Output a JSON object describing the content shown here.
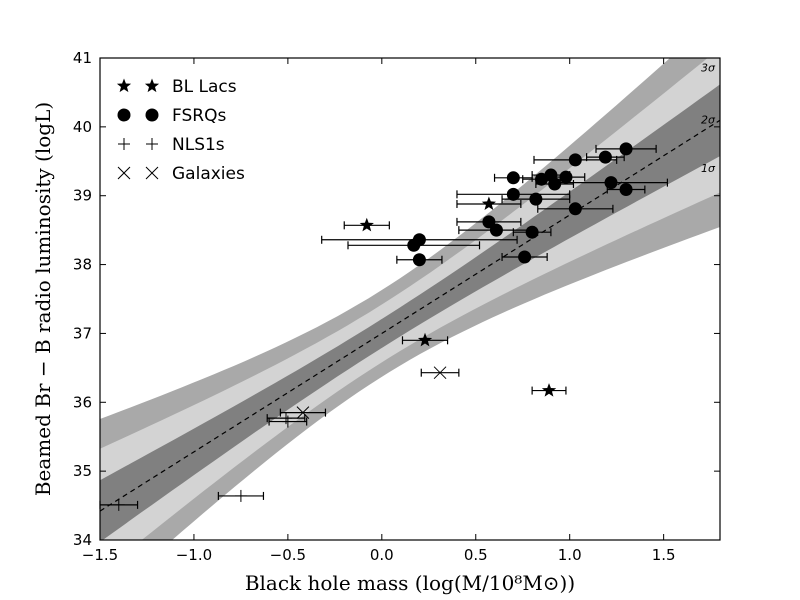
{
  "chart_data": {
    "type": "scatter",
    "xlabel": "Black hole mass (log(M/10⁸M⊙))",
    "ylabel": "Beamed Br − B radio luminosity (logL)",
    "xlim": [
      -1.5,
      1.8
    ],
    "ylim": [
      34,
      41
    ],
    "x_ticks": [
      -1.5,
      -1.0,
      -0.5,
      0.0,
      0.5,
      1.0,
      1.5
    ],
    "x_tick_labels": [
      "−1.5",
      "−1.0",
      "−0.5",
      "0.0",
      "0.5",
      "1.0",
      "1.5"
    ],
    "y_ticks": [
      34,
      35,
      36,
      37,
      38,
      39,
      40,
      41
    ],
    "y_tick_labels": [
      "34",
      "35",
      "36",
      "37",
      "38",
      "39",
      "40",
      "41"
    ],
    "fit_line": {
      "slope": 1.72,
      "intercept": 37.0
    },
    "bands": [
      {
        "label": "3σ",
        "label_y": 40.86,
        "half_width_at_pivot": 0.63,
        "half_width_at_edge": 1.55
      },
      {
        "label": "2σ",
        "label_y": 40.11,
        "half_width_at_pivot": 0.42,
        "half_width_at_edge": 1.05
      },
      {
        "label": "1σ",
        "label_y": 39.4,
        "half_width_at_pivot": 0.21,
        "half_width_at_edge": 0.52
      }
    ],
    "band_colors": [
      "#a9a9a9",
      "#d3d3d3",
      "#808080"
    ],
    "series": [
      {
        "name": "BL Lacs",
        "marker": "star",
        "points": [
          {
            "x": -0.08,
            "y": 38.57,
            "xerr": 0.12
          },
          {
            "x": 0.57,
            "y": 38.88,
            "xerr": 0.17
          },
          {
            "x": 0.23,
            "y": 36.9,
            "xerr": 0.12
          },
          {
            "x": 0.89,
            "y": 36.17,
            "xerr": 0.09
          }
        ]
      },
      {
        "name": "FSRQs",
        "marker": "circle",
        "points": [
          {
            "x": 1.3,
            "y": 39.68,
            "xerr": 0.16
          },
          {
            "x": 1.03,
            "y": 39.52,
            "xerr": 0.22
          },
          {
            "x": 1.19,
            "y": 39.56,
            "xerr": 0.1
          },
          {
            "x": 0.7,
            "y": 39.26,
            "xerr": 0.1
          },
          {
            "x": 0.85,
            "y": 39.24,
            "xerr": 0.1
          },
          {
            "x": 0.9,
            "y": 39.3,
            "xerr": 0.1
          },
          {
            "x": 0.98,
            "y": 39.27,
            "xerr": 0.1
          },
          {
            "x": 0.92,
            "y": 39.17,
            "xerr": 0.1
          },
          {
            "x": 1.22,
            "y": 39.19,
            "xerr": 0.3
          },
          {
            "x": 1.3,
            "y": 39.09,
            "xerr": 0.1
          },
          {
            "x": 0.7,
            "y": 39.02,
            "xerr": 0.3
          },
          {
            "x": 0.82,
            "y": 38.95,
            "xerr": 0.18
          },
          {
            "x": 1.03,
            "y": 38.81,
            "xerr": 0.2
          },
          {
            "x": 0.57,
            "y": 38.62,
            "xerr": 0.17
          },
          {
            "x": 0.61,
            "y": 38.5,
            "xerr": 0.2
          },
          {
            "x": 0.8,
            "y": 38.47,
            "xerr": 0.1
          },
          {
            "x": 0.2,
            "y": 38.36,
            "xerr": 0.52
          },
          {
            "x": 0.17,
            "y": 38.28,
            "xerr": 0.35
          },
          {
            "x": 0.2,
            "y": 38.07,
            "xerr": 0.12
          },
          {
            "x": 0.76,
            "y": 38.11,
            "xerr": 0.12
          }
        ]
      },
      {
        "name": "NLS1s",
        "marker": "plus",
        "points": [
          {
            "x": -1.4,
            "y": 34.51,
            "xerr": 0.1
          },
          {
            "x": -0.75,
            "y": 34.64,
            "xerr": 0.12
          },
          {
            "x": -0.51,
            "y": 35.77,
            "xerr": 0.1
          },
          {
            "x": -0.5,
            "y": 35.72,
            "xerr": 0.1
          }
        ]
      },
      {
        "name": "Galaxies",
        "marker": "x",
        "points": [
          {
            "x": 0.31,
            "y": 36.43,
            "xerr": 0.1
          },
          {
            "x": -0.42,
            "y": 35.85,
            "xerr": 0.12
          }
        ]
      }
    ],
    "legend": {
      "position": "top-left",
      "entries": [
        {
          "label": "BL Lacs",
          "marker": "star"
        },
        {
          "label": "FSRQs",
          "marker": "circle"
        },
        {
          "label": "NLS1s",
          "marker": "plus"
        },
        {
          "label": "Galaxies",
          "marker": "x"
        }
      ]
    }
  }
}
